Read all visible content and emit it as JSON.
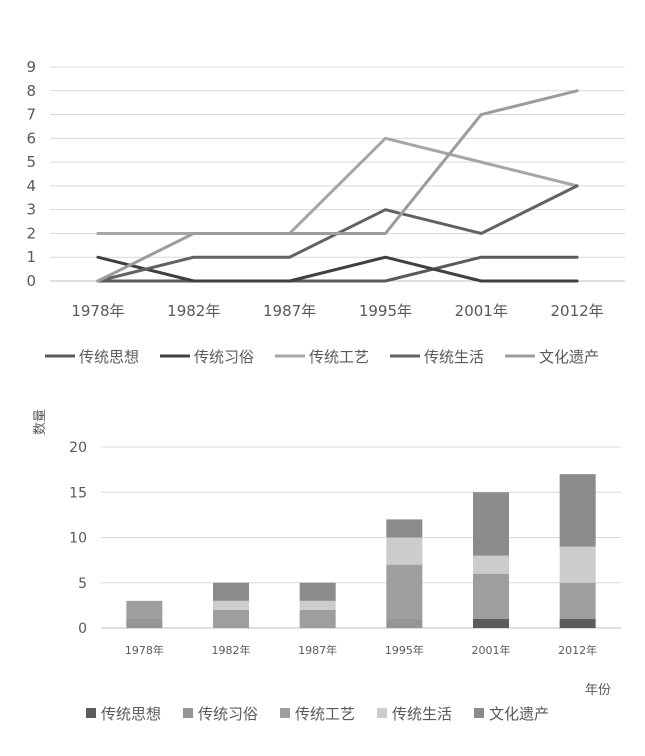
{
  "chart_data": [
    {
      "type": "line",
      "categories": [
        "1978年",
        "1982年",
        "1987年",
        "1995年",
        "2001年",
        "2012年"
      ],
      "series": [
        {
          "name": "传统思想",
          "values": [
            0,
            0,
            0,
            0,
            1,
            1
          ],
          "color": "#5a5a5a"
        },
        {
          "name": "传统习俗",
          "values": [
            1,
            0,
            0,
            1,
            0,
            0
          ],
          "color": "#404040"
        },
        {
          "name": "传统工艺",
          "values": [
            2,
            2,
            2,
            6,
            5,
            4
          ],
          "color": "#a6a6a6"
        },
        {
          "name": "传统生活",
          "values": [
            0,
            1,
            1,
            3,
            2,
            4
          ],
          "color": "#626262"
        },
        {
          "name": "文化遗产",
          "values": [
            0,
            2,
            2,
            2,
            7,
            8
          ],
          "color": "#9c9c9c"
        }
      ],
      "ylim": [
        0,
        9
      ],
      "yticks": [
        0,
        1,
        2,
        3,
        4,
        5,
        6,
        7,
        8,
        9
      ],
      "grid": true,
      "legend": "bottom"
    },
    {
      "type": "bar",
      "stacked": true,
      "categories": [
        "1978年",
        "1982年",
        "1987年",
        "1995年",
        "2001年",
        "2012年"
      ],
      "series": [
        {
          "name": "传统思想",
          "values": [
            0,
            0,
            0,
            0,
            1,
            1
          ],
          "color": "#5c5c5c"
        },
        {
          "name": "传统习俗",
          "values": [
            1,
            0,
            0,
            1,
            0,
            0
          ],
          "color": "#959595"
        },
        {
          "name": "传统工艺",
          "values": [
            2,
            2,
            2,
            6,
            5,
            4
          ],
          "color": "#9e9e9e"
        },
        {
          "name": "传统生活",
          "values": [
            0,
            1,
            1,
            3,
            2,
            4
          ],
          "color": "#cccccc"
        },
        {
          "name": "文化遗产",
          "values": [
            0,
            2,
            2,
            2,
            7,
            8
          ],
          "color": "#8b8b8b"
        }
      ],
      "xlabel": "年份",
      "ylabel": "数量",
      "ylim": [
        0,
        20
      ],
      "yticks": [
        0,
        5,
        10,
        15,
        20
      ],
      "grid": true,
      "legend": "bottom"
    }
  ]
}
